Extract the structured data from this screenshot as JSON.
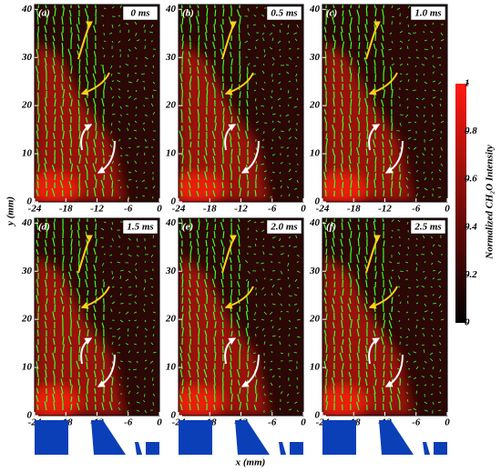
{
  "panels": [
    {
      "label": "(a)",
      "time": "0 ms"
    },
    {
      "label": "(b)",
      "time": "0.5 ms"
    },
    {
      "label": "(c)",
      "time": "1.0 ms"
    },
    {
      "label": "(d)",
      "time": "1.5 ms"
    },
    {
      "label": "(e)",
      "time": "2.0 ms"
    },
    {
      "label": "(f)",
      "time": "2.5 ms"
    }
  ],
  "xlabel": "x (mm)",
  "ylabel": "y (mm)",
  "xlim": [
    -24,
    0
  ],
  "xticks": [
    -24,
    -18,
    -12,
    -6,
    0
  ],
  "ylim": [
    0,
    41
  ],
  "yticks": [
    0,
    10,
    20,
    30,
    40
  ],
  "colorbar": {
    "label": "Normalized CH₂O Intensity",
    "lim": [
      0,
      1
    ],
    "ticks": [
      0,
      0.2,
      0.4,
      0.6,
      0.8,
      1
    ]
  }
}
